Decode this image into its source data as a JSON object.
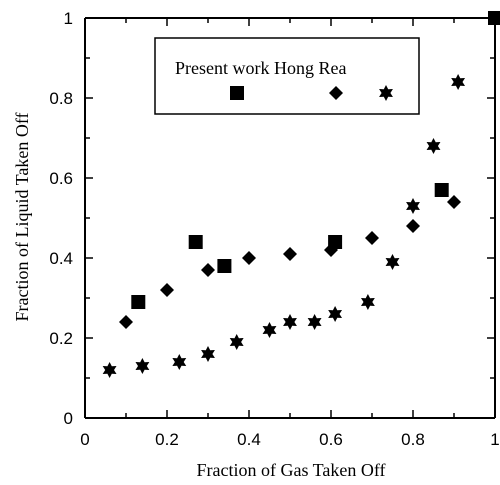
{
  "chart_data": {
    "type": "scatter",
    "xlabel": "Fraction of Gas Taken Off",
    "ylabel": "Fraction of Liquid Taken Off",
    "xlim": [
      0,
      1
    ],
    "ylim": [
      0,
      1
    ],
    "x_ticks": [
      "0",
      "0.2",
      "0.4",
      "0.6",
      "0.8",
      "1"
    ],
    "y_ticks": [
      "0",
      "0.2",
      "0.4",
      "0.6",
      "0.8",
      "1"
    ],
    "x_minor_step": 0.1,
    "y_minor_step": 0.1,
    "grid": false,
    "legend": {
      "position": "top-left",
      "text": "Present work Hong Rea"
    },
    "series": [
      {
        "name": "Present work",
        "marker": "square",
        "color": "#000000",
        "points": [
          [
            0.13,
            0.29
          ],
          [
            0.27,
            0.44
          ],
          [
            0.34,
            0.38
          ],
          [
            0.61,
            0.44
          ],
          [
            0.87,
            0.57
          ],
          [
            1.0,
            1.0
          ]
        ]
      },
      {
        "name": "Hong",
        "marker": "diamond",
        "color": "#000000",
        "points": [
          [
            0.1,
            0.24
          ],
          [
            0.2,
            0.32
          ],
          [
            0.3,
            0.37
          ],
          [
            0.4,
            0.4
          ],
          [
            0.5,
            0.41
          ],
          [
            0.6,
            0.42
          ],
          [
            0.7,
            0.45
          ],
          [
            0.8,
            0.48
          ],
          [
            0.9,
            0.54
          ]
        ]
      },
      {
        "name": "Rea",
        "marker": "star",
        "color": "#000000",
        "points": [
          [
            0.06,
            0.12
          ],
          [
            0.14,
            0.13
          ],
          [
            0.23,
            0.14
          ],
          [
            0.3,
            0.16
          ],
          [
            0.37,
            0.19
          ],
          [
            0.45,
            0.22
          ],
          [
            0.5,
            0.24
          ],
          [
            0.56,
            0.24
          ],
          [
            0.61,
            0.26
          ],
          [
            0.69,
            0.29
          ],
          [
            0.75,
            0.39
          ],
          [
            0.8,
            0.53
          ],
          [
            0.85,
            0.68
          ],
          [
            0.91,
            0.84
          ]
        ]
      }
    ]
  }
}
